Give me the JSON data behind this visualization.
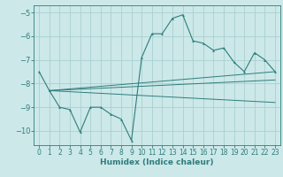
{
  "title": "",
  "xlabel": "Humidex (Indice chaleur)",
  "bg_color": "#cce8e8",
  "line_color": "#2e7d7d",
  "grid_color": "#aacfcf",
  "xlim": [
    -0.5,
    23.5
  ],
  "ylim": [
    -10.6,
    -4.7
  ],
  "yticks": [
    -10,
    -9,
    -8,
    -7,
    -6,
    -5
  ],
  "xticks": [
    0,
    1,
    2,
    3,
    4,
    5,
    6,
    7,
    8,
    9,
    10,
    11,
    12,
    13,
    14,
    15,
    16,
    17,
    18,
    19,
    20,
    21,
    22,
    23
  ],
  "main_line": {
    "x": [
      0,
      1,
      2,
      3,
      4,
      5,
      6,
      7,
      8,
      9,
      10,
      11,
      12,
      13,
      14,
      15,
      16,
      17,
      18,
      19,
      20,
      21,
      22,
      23
    ],
    "y": [
      -7.5,
      -8.3,
      -9.0,
      -9.1,
      -10.05,
      -9.0,
      -9.0,
      -9.3,
      -9.5,
      -10.4,
      -6.9,
      -5.9,
      -5.9,
      -5.25,
      -5.1,
      -6.2,
      -6.3,
      -6.6,
      -6.5,
      -7.1,
      -7.5,
      -6.7,
      -7.0,
      -7.5
    ]
  },
  "trend_lines": [
    {
      "x": [
        1,
        23
      ],
      "y": [
        -8.3,
        -7.5
      ]
    },
    {
      "x": [
        1,
        23
      ],
      "y": [
        -8.3,
        -7.85
      ]
    },
    {
      "x": [
        1,
        23
      ],
      "y": [
        -8.3,
        -8.8
      ]
    }
  ],
  "xlabel_fontsize": 6.5,
  "tick_fontsize": 5.5
}
